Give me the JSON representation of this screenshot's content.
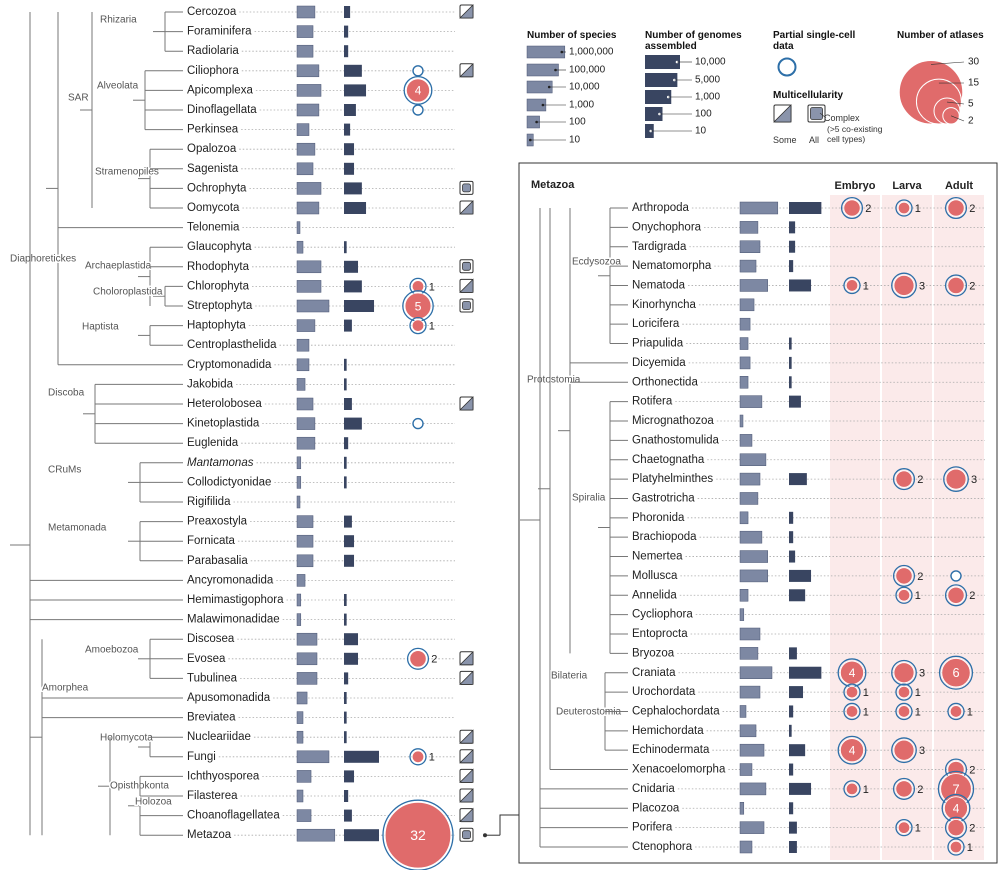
{
  "legend": {
    "species_title": "Number of species",
    "species_ticks": [
      {
        "value": 1000000,
        "label": "1,000,000"
      },
      {
        "value": 100000,
        "label": "100,000"
      },
      {
        "value": 10000,
        "label": "10,000"
      },
      {
        "value": 1000,
        "label": "1,000"
      },
      100,
      10
    ],
    "genomes_title": "Number of genomes assembled",
    "genomes_ticks": [
      {
        "value": 10000,
        "label": "10,000"
      },
      {
        "value": 5000,
        "label": "5,000"
      },
      {
        "value": 1000,
        "label": "1,000"
      },
      100,
      10
    ],
    "partial_title": "Partial single-cell data",
    "multi_title": "Multicellularity",
    "some": "Some",
    "all": "All",
    "complex": "Complex",
    "complex_note": "(>5 co-existing cell types)",
    "atlas_title": "Number of atlases",
    "atlas_ticks": [
      30,
      15,
      5,
      2
    ]
  },
  "left": {
    "clades": [
      "Rhizaria",
      "Alveolata",
      "Stramenopiles",
      "SAR",
      "Archaeplastida",
      "Choloroplastida",
      "Haptista",
      "Diaphoretickes",
      "Discoba",
      "CRuMs",
      "Metamonada",
      "Amoebozoa",
      "Holomycota",
      "Opisthokonta",
      "Holozoa",
      "Amorphea"
    ],
    "rows": [
      {
        "name": "Cercozoa",
        "species": 700,
        "genomes": 5,
        "multi": "some"
      },
      {
        "name": "Foraminifera",
        "species": 350,
        "genomes": 3
      },
      {
        "name": "Radiolaria",
        "species": 350,
        "genomes": 3
      },
      {
        "name": "Ciliophora",
        "species": 3000,
        "genomes": 110,
        "partial": true,
        "multi": "some"
      },
      {
        "name": "Apicomplexa",
        "species": 6500,
        "genomes": 330,
        "atlases": 4
      },
      {
        "name": "Dinoflagellata",
        "species": 3000,
        "genomes": 23,
        "partial": true
      },
      {
        "name": "Perkinsea",
        "species": 80,
        "genomes": 5
      },
      {
        "name": "Opalozoa",
        "species": 700,
        "genomes": 14
      },
      {
        "name": "Sagenista",
        "species": 350,
        "genomes": 14
      },
      {
        "name": "Ochrophyta",
        "species": 6500,
        "genomes": 110,
        "multi": "all"
      },
      {
        "name": "Oomycota",
        "species": 3000,
        "genomes": 330,
        "multi": "some"
      },
      {
        "name": "Telonemia",
        "species": 3
      },
      {
        "name": "Glaucophyta",
        "species": 9,
        "genomes": 2
      },
      {
        "name": "Rhodophyta",
        "species": 6500,
        "genomes": 40,
        "multi": "all"
      },
      {
        "name": "Chlorophyta",
        "species": 6500,
        "genomes": 110,
        "atlases": 1,
        "multi": "some"
      },
      {
        "name": "Streptophyta",
        "species": 120000,
        "genomes": 2700,
        "atlases": 5,
        "multi": "all"
      },
      {
        "name": "Haptophyta",
        "species": 700,
        "genomes": 8,
        "atlases": 1
      },
      {
        "name": "Centroplasthelida",
        "species": 80
      },
      {
        "name": "Cryptomonadida",
        "species": 80,
        "genomes": 2
      },
      {
        "name": "Jakobida",
        "species": 19,
        "genomes": 2
      },
      {
        "name": "Heterolobosea",
        "species": 350,
        "genomes": 8,
        "multi": "some"
      },
      {
        "name": "Kinetoplastida",
        "species": 700,
        "genomes": 110,
        "partial": true
      },
      {
        "name": "Euglenida",
        "species": 700,
        "genomes": 3
      },
      {
        "name": "Mantamonas",
        "species": 4,
        "genomes": 2,
        "italic": true
      },
      {
        "name": "Collodictyonidae",
        "species": 4,
        "genomes": 2
      },
      {
        "name": "Rigifilida",
        "species": 3
      },
      {
        "name": "Preaxostyla",
        "species": 350,
        "genomes": 8
      },
      {
        "name": "Fornicata",
        "species": 350,
        "genomes": 14
      },
      {
        "name": "Parabasalia",
        "species": 350,
        "genomes": 14
      },
      {
        "name": "Ancyromonadida",
        "species": 19
      },
      {
        "name": "Hemimastigophora",
        "species": 4,
        "genomes": 2
      },
      {
        "name": "Malawimonadidae",
        "species": 4,
        "genomes": 2
      },
      {
        "name": "Discosea",
        "species": 1500,
        "genomes": 40
      },
      {
        "name": "Evosea",
        "species": 1500,
        "genomes": 40,
        "atlases": 2,
        "multi": "some"
      },
      {
        "name": "Tubulinea",
        "species": 1500,
        "genomes": 3,
        "multi": "some"
      },
      {
        "name": "Apusomonadida",
        "species": 40,
        "genomes": 2
      },
      {
        "name": "Breviatea",
        "species": 9,
        "genomes": 2
      },
      {
        "name": "Nucleariidae",
        "species": 9,
        "genomes": 2,
        "multi": "some"
      },
      {
        "name": "Fungi",
        "species": 120000,
        "genomes": 10000,
        "atlases": 1,
        "multi": "some"
      },
      {
        "name": "Ichthyosporea",
        "species": 170,
        "genomes": 14,
        "multi": "some"
      },
      {
        "name": "Filasterea",
        "species": 9,
        "genomes": 3,
        "multi": "some"
      },
      {
        "name": "Choanoflagellatea",
        "species": 170,
        "genomes": 8,
        "multi": "some"
      },
      {
        "name": "Metazoa",
        "species": 1000000,
        "genomes": 10000,
        "atlases": 32,
        "multi": "all"
      }
    ]
  },
  "metazoa": {
    "title": "Metazoa",
    "columns": [
      "Embryo",
      "Larva",
      "Adult"
    ],
    "clades": [
      "Ecdysozoa",
      "Spiralia",
      "Protostomia",
      "Deuterostomia",
      "Bilateria"
    ],
    "rows": [
      {
        "name": "Arthropoda",
        "species": 1000000,
        "genomes": 5000,
        "embryo": 2,
        "larva": 1,
        "adult": 2
      },
      {
        "name": "Onychophora",
        "species": 700,
        "genomes": 5
      },
      {
        "name": "Tardigrada",
        "species": 1500,
        "genomes": 5
      },
      {
        "name": "Nematomorpha",
        "species": 350,
        "genomes": 3
      },
      {
        "name": "Nematoda",
        "species": 25000,
        "genomes": 330,
        "embryo": 1,
        "larva": 3,
        "adult": 2
      },
      {
        "name": "Kinorhyncha",
        "species": 170
      },
      {
        "name": "Loricifera",
        "species": 40
      },
      {
        "name": "Priapulida",
        "species": 19,
        "genomes": 2
      },
      {
        "name": "Dicyemida",
        "species": 40,
        "genomes": 2
      },
      {
        "name": "Orthonectida",
        "species": 19,
        "genomes": 2
      },
      {
        "name": "Rotifera",
        "species": 3000,
        "genomes": 23
      },
      {
        "name": "Micrognathozoa",
        "species": 3
      },
      {
        "name": "Gnathostomulida",
        "species": 80
      },
      {
        "name": "Chaetognatha",
        "species": 13000
      },
      {
        "name": "Platyhelminthes",
        "species": 1500,
        "genomes": 110,
        "larva": 2,
        "adult": 3
      },
      {
        "name": "Gastrotricha",
        "species": 700
      },
      {
        "name": "Phoronida",
        "species": 19,
        "genomes": 3
      },
      {
        "name": "Brachiopoda",
        "species": 3000,
        "genomes": 3
      },
      {
        "name": "Nemertea",
        "species": 25000,
        "genomes": 5
      },
      {
        "name": "Mollusca",
        "species": 25000,
        "genomes": 330,
        "larva": 2,
        "adult_partial": true
      },
      {
        "name": "Annelida",
        "species": 19,
        "genomes": 70,
        "larva": 1,
        "adult": 2
      },
      {
        "name": "Cycliophora",
        "species": 4
      },
      {
        "name": "Entoprocta",
        "species": 1500
      },
      {
        "name": "Bryozoa",
        "species": 700,
        "genomes": 8
      },
      {
        "name": "Craniata",
        "species": 120000,
        "genomes": 5000,
        "embryo": 4,
        "larva": 3,
        "adult": 6
      },
      {
        "name": "Urochordata",
        "species": 1500,
        "genomes": 40,
        "embryo": 1,
        "larva": 1
      },
      {
        "name": "Cephalochordata",
        "species": 9,
        "genomes": 3,
        "embryo": 1,
        "larva": 1,
        "adult": 1
      },
      {
        "name": "Hemichordata",
        "species": 350,
        "genomes": 2
      },
      {
        "name": "Echinodermata",
        "species": 6500,
        "genomes": 70,
        "embryo": 4,
        "larva": 3
      },
      {
        "name": "Xenacoelomorpha",
        "species": 80,
        "genomes": 3,
        "adult": 2
      },
      {
        "name": "Cnidaria",
        "species": 13000,
        "genomes": 330,
        "embryo": 1,
        "larva": 2,
        "adult": 7
      },
      {
        "name": "Placozoa",
        "species": 4,
        "genomes": 3,
        "adult": 4
      },
      {
        "name": "Porifera",
        "species": 6500,
        "genomes": 8,
        "larva": 1,
        "adult": 2
      },
      {
        "name": "Ctenophora",
        "species": 80,
        "genomes": 8,
        "adult": 1
      }
    ]
  }
}
